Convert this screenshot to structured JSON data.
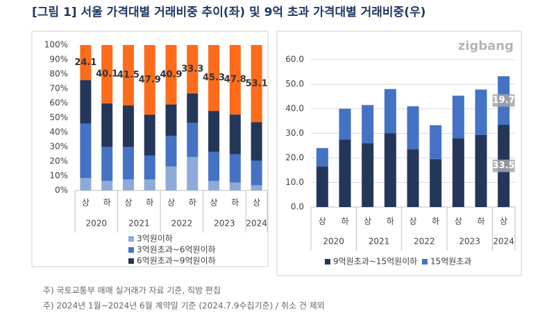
{
  "title": "[그림 1] 서울 가격대별 거래비중 추이(좌) 및 9억 초과 가격대별 거래비중(우)",
  "logo": "zigbang",
  "notes": [
    "주) 국토교통부 매매 실거래가 자료 기준, 직방 편집",
    "주) 2024년 1월~2024년 6월 계약일 기준 (2024.7.9수집기준) / 취소 건 제외"
  ],
  "chart_data": [
    {
      "type": "stacked_bar",
      "legend": "bottom",
      "grid": false,
      "label_box": false,
      "categories": [
        "상",
        "하",
        "상",
        "하",
        "상",
        "하",
        "상",
        "하",
        "상"
      ],
      "groups": [
        "2020",
        "2020",
        "2021",
        "2021",
        "2022",
        "2022",
        "2023",
        "2023",
        "2024"
      ],
      "ylim": [
        0,
        100
      ],
      "yticks": [
        {
          "value": 0,
          "label": "0%"
        },
        {
          "value": 10,
          "label": "10%"
        },
        {
          "value": 20,
          "label": "20%"
        },
        {
          "value": 30,
          "label": "30%"
        },
        {
          "value": 40,
          "label": "40%"
        },
        {
          "value": 50,
          "label": "50%"
        },
        {
          "value": 60,
          "label": "60%"
        },
        {
          "value": 70,
          "label": "70%"
        },
        {
          "value": 80,
          "label": "80%"
        },
        {
          "value": 90,
          "label": "90%"
        },
        {
          "value": 100,
          "label": "100%"
        }
      ],
      "series": [
        {
          "name": "3억원이하",
          "color": "#8eaadb",
          "values": [
            8.5,
            6.5,
            7.5,
            7.5,
            16.5,
            23,
            6.5,
            5.5,
            3.5
          ]
        },
        {
          "name": "3억원초과~6억원이하",
          "color": "#4472c4",
          "values": [
            37.5,
            23.5,
            22.5,
            16.5,
            21,
            23.5,
            20,
            19.5,
            17
          ]
        },
        {
          "name": "6억원초과~9억원이하",
          "color": "#24375a",
          "values": [
            29.9,
            29.9,
            28.5,
            28.1,
            21.6,
            20.2,
            28.2,
            27.2,
            26.4
          ]
        },
        {
          "color": "#fe6b1a",
          "show_values": true,
          "values": [
            24.1,
            40.1,
            41.5,
            47.9,
            40.9,
            33.3,
            45.3,
            47.8,
            53.1
          ]
        }
      ]
    },
    {
      "type": "stacked_bar",
      "legend": "bottom",
      "grid": true,
      "label_box": true,
      "categories": [
        "상",
        "하",
        "상",
        "하",
        "상",
        "하",
        "상",
        "하",
        "상"
      ],
      "groups": [
        "2020",
        "2020",
        "2021",
        "2021",
        "2022",
        "2022",
        "2023",
        "2023",
        "2024"
      ],
      "ylim": [
        0,
        60
      ],
      "yticks": [
        {
          "value": 0,
          "label": "0.0"
        },
        {
          "value": 10,
          "label": "10.0"
        },
        {
          "value": 20,
          "label": "20.0"
        },
        {
          "value": 30,
          "label": "30.0"
        },
        {
          "value": 40,
          "label": "40.0"
        },
        {
          "value": 50,
          "label": "50.0"
        },
        {
          "value": 60,
          "label": "60.0"
        }
      ],
      "series": [
        {
          "name": "9억원초과~15억원이하",
          "color": "#24375a",
          "values": [
            16.5,
            27.5,
            26,
            30,
            23.5,
            19.5,
            28,
            29.3,
            33.5
          ],
          "value_labels": [
            null,
            null,
            null,
            null,
            null,
            null,
            null,
            null,
            "33.5"
          ]
        },
        {
          "name": "15억원초과",
          "color": "#4472c4",
          "values": [
            7.5,
            12.5,
            15.5,
            18,
            17.5,
            13.8,
            17.3,
            18.5,
            19.7
          ],
          "value_labels": [
            null,
            null,
            null,
            null,
            null,
            null,
            null,
            null,
            "19.7"
          ]
        }
      ]
    }
  ]
}
